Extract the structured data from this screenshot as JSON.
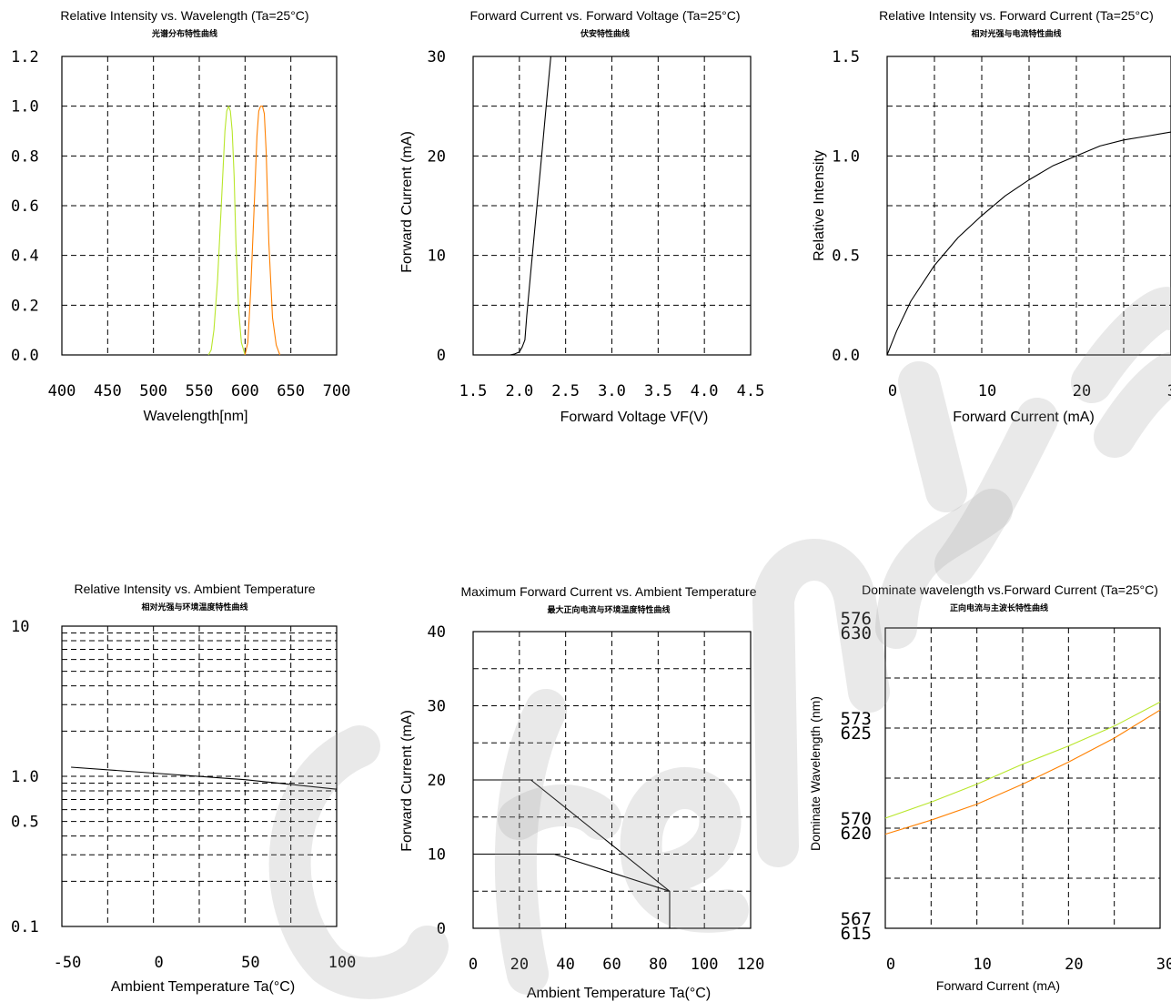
{
  "colors": {
    "green": "#b8e62a",
    "orange": "#ff8000",
    "black": "#000000"
  },
  "chart_data": [
    {
      "id": "c1",
      "type": "line",
      "title": "Relative Intensity vs. Wavelength (Ta=25°C)",
      "subtitle": "光谱分布特性曲线",
      "xlabel": "Wavelength[nm]",
      "ylabel": "",
      "xlim": [
        400,
        700
      ],
      "ylim": [
        0,
        1.2
      ],
      "xticks": [
        "400",
        "450",
        "500",
        "550",
        "600",
        "650",
        "700"
      ],
      "yticks": [
        "0.0",
        "0.2",
        "0.4",
        "0.6",
        "0.8",
        "1.0",
        "1.2"
      ],
      "grid": true,
      "series": [
        {
          "color": "#b8e62a",
          "x": [
            560,
            563,
            566,
            570,
            574,
            578,
            580,
            582,
            584,
            586,
            588,
            590,
            593,
            596,
            600
          ],
          "y": [
            0,
            0.02,
            0.1,
            0.3,
            0.6,
            0.9,
            0.98,
            1.0,
            0.98,
            0.9,
            0.72,
            0.45,
            0.18,
            0.05,
            0
          ]
        },
        {
          "color": "#ff8000",
          "x": [
            600,
            603,
            606,
            610,
            613,
            615,
            617,
            619,
            621,
            623,
            626,
            630,
            634,
            638
          ],
          "y": [
            0,
            0.05,
            0.25,
            0.6,
            0.88,
            0.98,
            1.0,
            1.0,
            0.97,
            0.82,
            0.45,
            0.15,
            0.04,
            0
          ]
        }
      ]
    },
    {
      "id": "c2",
      "type": "line",
      "title": "Forward Current vs. Forward Voltage (Ta=25°C)",
      "subtitle": "伏安特性曲线",
      "xlabel": "Forward Voltage  VF(V)",
      "ylabel": "Forward Current (mA)",
      "xlim": [
        1.5,
        4.5
      ],
      "ylim": [
        0,
        30
      ],
      "xticks": [
        "1.5",
        "2.0",
        "2.5",
        "3.0",
        "3.5",
        "4.0",
        "4.5"
      ],
      "yticks": [
        "0",
        "10",
        "20",
        "30"
      ],
      "grid": true,
      "series": [
        {
          "color": "#000000",
          "x": [
            1.8,
            1.9,
            1.95,
            2.0,
            2.03,
            2.06,
            2.08,
            2.12,
            2.16,
            2.2,
            2.25,
            2.3,
            2.34
          ],
          "y": [
            0,
            0,
            0.1,
            0.3,
            0.8,
            1.5,
            4,
            8,
            12,
            16,
            21,
            26,
            30
          ]
        }
      ]
    },
    {
      "id": "c3",
      "type": "line",
      "title": "Relative Intensity vs. Forward Current (Ta=25°C)",
      "subtitle": "相对光强与电流特性曲线",
      "xlabel": "Forward Current (mA)",
      "ylabel": "Relative Intensity",
      "xlim": [
        0,
        30
      ],
      "ylim": [
        0,
        1.5
      ],
      "xticks": [
        "0",
        "10",
        "20",
        "30"
      ],
      "yticks": [
        "0.0",
        "0.5",
        "1.0",
        "1.5"
      ],
      "grid": true,
      "series": [
        {
          "color": "#000000",
          "x": [
            0,
            1,
            2.5,
            5,
            7.5,
            10,
            12.5,
            15,
            17.5,
            20,
            22.5,
            25,
            27.5,
            30
          ],
          "y": [
            0,
            0.12,
            0.27,
            0.45,
            0.59,
            0.7,
            0.8,
            0.88,
            0.95,
            1.0,
            1.05,
            1.08,
            1.1,
            1.12
          ]
        }
      ]
    },
    {
      "id": "c4",
      "type": "line",
      "title": "Relative Intensity vs. Ambient Temperature",
      "subtitle": "相对光强与环境温度特性曲线",
      "xlabel": "Ambient Temperature Ta(°C)",
      "ylabel": "",
      "xlim": [
        -50,
        100
      ],
      "ylim": [
        0.1,
        10
      ],
      "yscale": "log",
      "xticks": [
        "-50",
        "0",
        "50",
        "100"
      ],
      "yticks": [
        "0.1",
        "0.5",
        "1.0",
        "10"
      ],
      "ytick_values": [
        0.1,
        0.5,
        1.0,
        10
      ],
      "grid": true,
      "series": [
        {
          "color": "#000000",
          "x": [
            -45,
            0,
            50,
            100
          ],
          "y": [
            1.15,
            1.05,
            0.95,
            0.82
          ]
        }
      ]
    },
    {
      "id": "c5",
      "type": "line",
      "title": "Maximum Forward Current vs. Ambient Temperature",
      "subtitle": "最大正向电流与环境温度特性曲线",
      "xlabel": "Ambient Temperature Ta(°C)",
      "ylabel": "Forward Current (mA)",
      "xlim": [
        0,
        120
      ],
      "ylim": [
        0,
        40
      ],
      "xticks": [
        "0",
        "20",
        "40",
        "60",
        "80",
        "100",
        "120"
      ],
      "yticks": [
        "0",
        "10",
        "20",
        "30",
        "40"
      ],
      "grid": true,
      "series": [
        {
          "color": "#000000",
          "x": [
            0,
            25,
            85,
            85
          ],
          "y": [
            20,
            20,
            5,
            0
          ]
        },
        {
          "color": "#000000",
          "x": [
            0,
            35,
            85
          ],
          "y": [
            10,
            10,
            5
          ]
        }
      ]
    },
    {
      "id": "c6",
      "type": "line",
      "title": "Dominate wavelength vs.Forward Current (Ta=25°C)",
      "subtitle": "正向电流与主波长特性曲线",
      "xlabel": "Forward  Current  (mA)",
      "ylabel": "Dominate Wavelength  (nm)",
      "xlim": [
        0,
        30
      ],
      "ylim": [
        615,
        630
      ],
      "xticks": [
        "0",
        "10",
        "20",
        "30"
      ],
      "yticks_top": [
        "567",
        "570",
        "573",
        "576"
      ],
      "yticks_bottom": [
        "615",
        "620",
        "625",
        "630"
      ],
      "ytick_values": [
        615,
        620,
        625,
        630
      ],
      "grid": true,
      "series": [
        {
          "color": "#b8e62a",
          "x": [
            0,
            5,
            10,
            15,
            20,
            25,
            30
          ],
          "y": [
            620.5,
            621.3,
            622.2,
            623.2,
            624.1,
            625.1,
            626.3
          ]
        },
        {
          "color": "#ff8000",
          "x": [
            0,
            5,
            10,
            15,
            20,
            25,
            30
          ],
          "y": [
            619.7,
            620.4,
            621.2,
            622.2,
            623.3,
            624.5,
            625.9
          ]
        }
      ]
    }
  ]
}
